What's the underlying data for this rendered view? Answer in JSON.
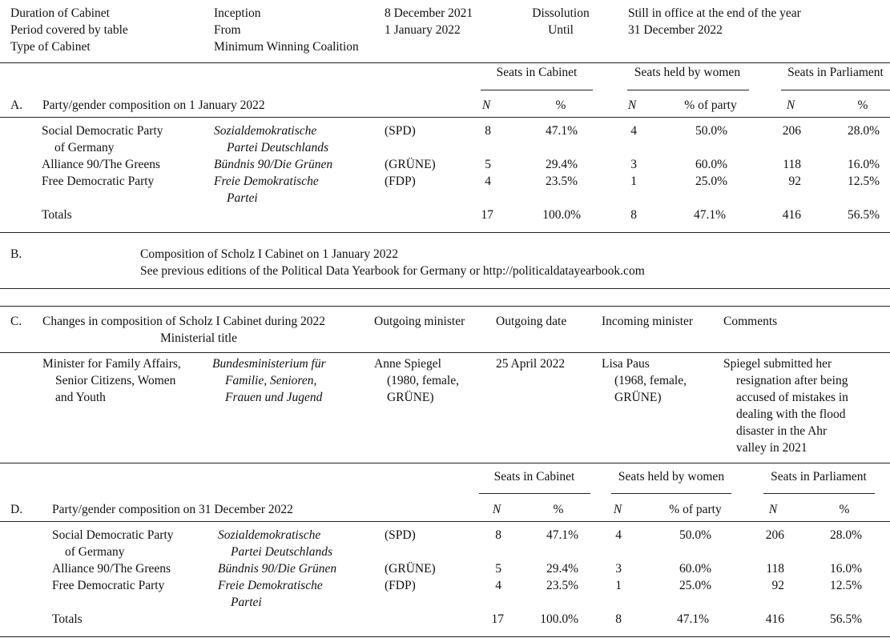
{
  "header": {
    "rows": [
      [
        "Duration of Cabinet",
        "Inception",
        "8 December 2021",
        "Dissolution",
        "Still in office at the end of the year"
      ],
      [
        "Period covered by table",
        "From",
        "1 January 2022",
        "Until",
        "31 December 2022"
      ],
      [
        "Type of Cabinet",
        "Minimum Winning Coalition"
      ]
    ]
  },
  "section_a": {
    "label": "A.",
    "title": "Party/gender composition on 1 January 2022",
    "column_groups": [
      "Seats in Cabinet",
      "Seats held by women",
      "Seats in Parliament"
    ],
    "subheaders": [
      "N",
      "%",
      "N",
      "% of party",
      "N",
      "%"
    ],
    "rows": [
      {
        "party": [
          "Social Democratic Party",
          "of Germany"
        ],
        "native": [
          "Sozialdemokratische",
          "Partei Deutschlands"
        ],
        "abbreviation": "(SPD)",
        "values": [
          "8",
          "47.1%",
          "4",
          "50.0%",
          "206",
          "28.0%"
        ]
      },
      {
        "party": [
          "Alliance 90/The Greens"
        ],
        "native": [
          "Bündnis 90/Die Grünen"
        ],
        "abbreviation": "(GRÜNE)",
        "values": [
          "5",
          "29.4%",
          "3",
          "60.0%",
          "118",
          "16.0%"
        ]
      },
      {
        "party": [
          "Free Democratic Party"
        ],
        "native": [
          "Freie Demokratische",
          "Partei"
        ],
        "abbreviation": "(FDP)",
        "values": [
          "4",
          "23.5%",
          "1",
          "25.0%",
          "92",
          "12.5%"
        ]
      }
    ],
    "totals": {
      "label": "Totals",
      "values": [
        "17",
        "100.0%",
        "8",
        "47.1%",
        "416",
        "56.5%"
      ]
    }
  },
  "section_b": {
    "label": "B.",
    "lines": [
      "Composition of Scholz I Cabinet on 1 January 2022",
      "See previous editions of the Political Data Yearbook for Germany or http://politicaldatayearbook.com"
    ]
  },
  "section_c": {
    "label": "C.",
    "title": "Changes in composition of Scholz I Cabinet during 2022",
    "columns": [
      "Ministerial title",
      "Outgoing minister",
      "Outgoing date",
      "Incoming minister",
      "Comments"
    ],
    "row": {
      "title": [
        "Minister for Family Affairs,",
        "Senior Citizens, Women",
        "and Youth"
      ],
      "native": [
        "Bundesministerium für",
        "Familie, Senioren,",
        "Frauen und Jugend"
      ],
      "outgoing": [
        "Anne Spiegel",
        "(1980, female,",
        "GRÜNE)"
      ],
      "date": "25 April 2022",
      "incoming": [
        "Lisa Paus",
        "(1968, female,",
        "GRÜNE)"
      ],
      "comments": [
        "Spiegel submitted her",
        "resignation after being",
        "accused of mistakes in",
        "dealing with the flood",
        "disaster in the Ahr",
        "valley in 2021"
      ]
    }
  },
  "section_d": {
    "label": "D.",
    "title": "Party/gender composition on 31 December 2022",
    "column_groups": [
      "Seats in Cabinet",
      "Seats held by women",
      "Seats in Parliament"
    ],
    "subheaders": [
      "N",
      "%",
      "N",
      "% of party",
      "N",
      "%"
    ],
    "rows": [
      {
        "party": [
          "Social Democratic Party",
          "of Germany"
        ],
        "native": [
          "Sozialdemokratische",
          "Partei Deutschlands"
        ],
        "abbreviation": "(SPD)",
        "values": [
          "8",
          "47.1%",
          "4",
          "50.0%",
          "206",
          "28.0%"
        ]
      },
      {
        "party": [
          "Alliance 90/The Greens"
        ],
        "native": [
          "Bündnis 90/Die Grünen"
        ],
        "abbreviation": "(GRÜNE)",
        "values": [
          "5",
          "29.4%",
          "3",
          "60.0%",
          "118",
          "16.0%"
        ]
      },
      {
        "party": [
          "Free Democratic Party"
        ],
        "native": [
          "Freie Demokratische",
          "Partei"
        ],
        "abbreviation": "(FDP)",
        "values": [
          "4",
          "23.5%",
          "1",
          "25.0%",
          "92",
          "12.5%"
        ]
      }
    ],
    "totals": {
      "label": "Totals",
      "values": [
        "17",
        "100.0%",
        "8",
        "47.1%",
        "416",
        "56.5%"
      ]
    }
  }
}
